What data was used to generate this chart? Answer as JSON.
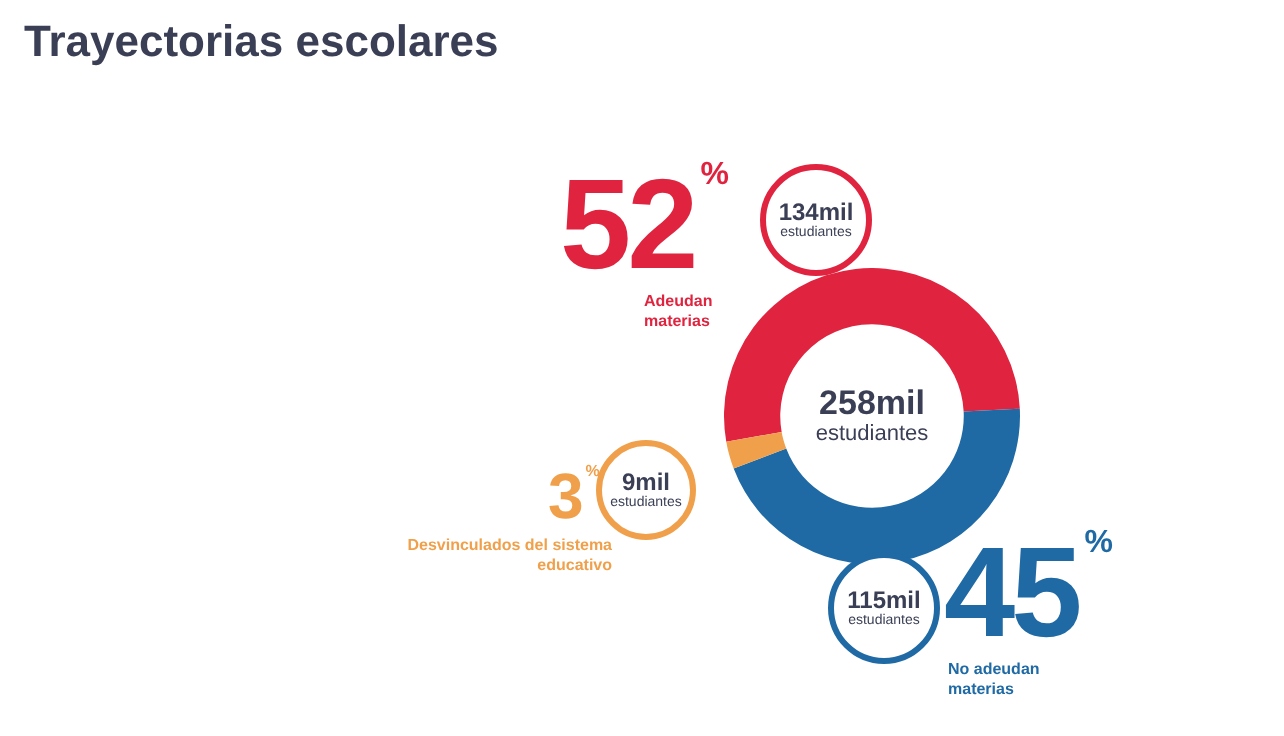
{
  "chart_data": {
    "type": "donut",
    "title": "Trayectorias escolares",
    "categories": [
      "Adeudan materias",
      "No adeudan materias",
      "Desvinculados del sistema educativo"
    ],
    "values": [
      52,
      45,
      3
    ],
    "colors": [
      "#e0243f",
      "#1f6aa5",
      "#f0a04a"
    ],
    "value_labels": [
      "52%",
      "45%",
      "3%"
    ],
    "annotations": [
      "258mil estudiantes",
      "134mil estudiantes",
      "115mil estudiantes",
      "9mil estudiantes"
    ]
  }
}
